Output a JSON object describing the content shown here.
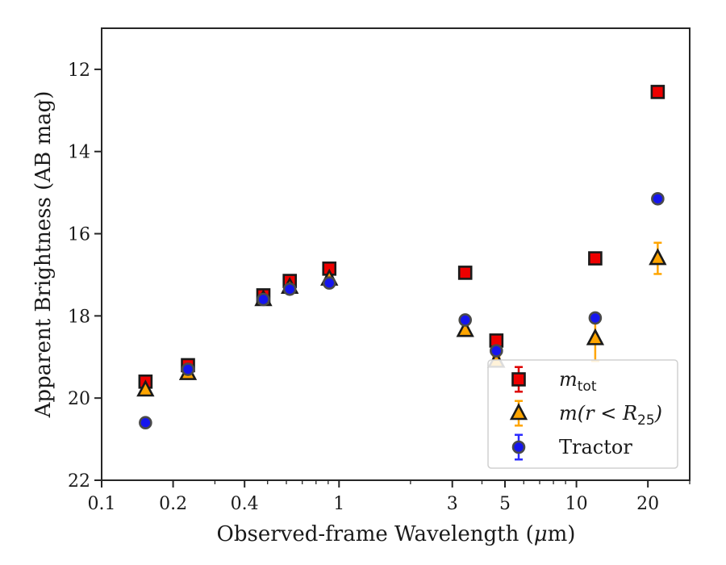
{
  "chart_data": {
    "type": "scatter",
    "xlabel_prefix": "Observed-frame Wavelength (",
    "xlabel_unit": "μ",
    "xlabel_suffix": "m)",
    "ylabel": "Apparent Brightness (AB mag)",
    "xscale": "log",
    "xlim": [
      0.1,
      30
    ],
    "ylim": [
      22,
      11
    ],
    "y_inverted": true,
    "grid": false,
    "legend_position": "lower-right",
    "x_ticks": [
      {
        "value": 0.1,
        "label": "0.1"
      },
      {
        "value": 0.2,
        "label": "0.2"
      },
      {
        "value": 0.4,
        "label": "0.4"
      },
      {
        "value": 1,
        "label": "1"
      },
      {
        "value": 3,
        "label": "3"
      },
      {
        "value": 5,
        "label": "5"
      },
      {
        "value": 10,
        "label": "10"
      },
      {
        "value": 20,
        "label": "20"
      }
    ],
    "y_ticks": [
      {
        "value": 12,
        "label": "12"
      },
      {
        "value": 14,
        "label": "14"
      },
      {
        "value": 16,
        "label": "16"
      },
      {
        "value": 18,
        "label": "18"
      },
      {
        "value": 20,
        "label": "20"
      },
      {
        "value": 22,
        "label": "22"
      }
    ],
    "series": [
      {
        "name": "m_tot",
        "legend_main": "m",
        "legend_sub": "tot",
        "marker": "square",
        "color": "#ee0000",
        "errorbar_color": "#dd0000",
        "points": [
          {
            "x": 0.153,
            "y": 19.6,
            "err": 0.05
          },
          {
            "x": 0.231,
            "y": 19.2,
            "err": 0.05
          },
          {
            "x": 0.48,
            "y": 17.5,
            "err": 0.05
          },
          {
            "x": 0.62,
            "y": 17.15,
            "err": 0.05
          },
          {
            "x": 0.91,
            "y": 16.85,
            "err": 0.05
          },
          {
            "x": 3.4,
            "y": 16.95,
            "err": 0.05
          },
          {
            "x": 4.6,
            "y": 18.6,
            "err": 0.05
          },
          {
            "x": 12.0,
            "y": 16.6,
            "err": 0.05
          },
          {
            "x": 22.0,
            "y": 12.55,
            "err": 0.05
          }
        ]
      },
      {
        "name": "m(r < R25)",
        "legend_main": "m(r < R",
        "legend_sub": "25",
        "legend_tail": ")",
        "marker": "triangle",
        "color": "#ffa500",
        "errorbar_color": "#ffa500",
        "points": [
          {
            "x": 0.153,
            "y": 19.8,
            "err": 0.05
          },
          {
            "x": 0.231,
            "y": 19.4,
            "err": 0.05
          },
          {
            "x": 0.48,
            "y": 17.6,
            "err": 0.05
          },
          {
            "x": 0.62,
            "y": 17.3,
            "err": 0.05
          },
          {
            "x": 0.91,
            "y": 17.1,
            "err": 0.05
          },
          {
            "x": 3.4,
            "y": 18.35,
            "err": 0.05
          },
          {
            "x": 4.6,
            "y": 19.1,
            "err": 0.1
          },
          {
            "x": 12.0,
            "y": 18.55,
            "err": 0.55
          },
          {
            "x": 22.0,
            "y": 16.6,
            "err": 0.38
          }
        ]
      },
      {
        "name": "Tractor",
        "legend_main": "Tractor",
        "marker": "circle",
        "color": "#1515ee",
        "errorbar_color": "#2a2aff",
        "points": [
          {
            "x": 0.153,
            "y": 20.6,
            "err": 0.05
          },
          {
            "x": 0.231,
            "y": 19.3,
            "err": 0.05
          },
          {
            "x": 0.48,
            "y": 17.6,
            "err": 0.05
          },
          {
            "x": 0.62,
            "y": 17.35,
            "err": 0.05
          },
          {
            "x": 0.91,
            "y": 17.2,
            "err": 0.05
          },
          {
            "x": 3.4,
            "y": 18.1,
            "err": 0.05
          },
          {
            "x": 4.6,
            "y": 18.85,
            "err": 0.05
          },
          {
            "x": 12.0,
            "y": 18.05,
            "err": 0.05
          },
          {
            "x": 22.0,
            "y": 15.15,
            "err": 0.05
          }
        ]
      }
    ]
  }
}
